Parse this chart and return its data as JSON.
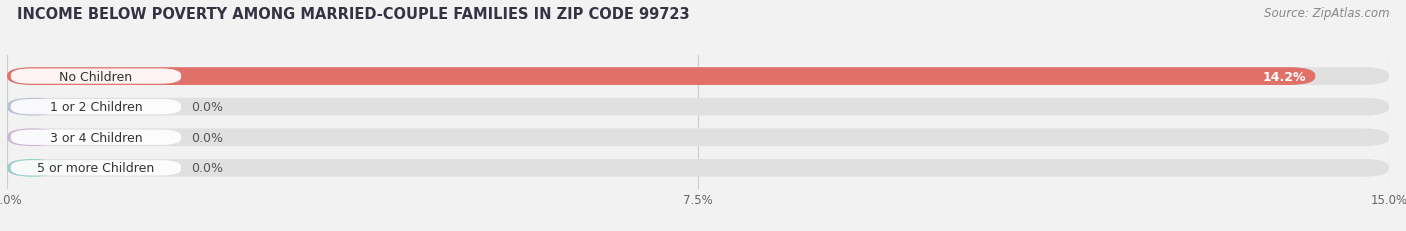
{
  "title": "INCOME BELOW POVERTY AMONG MARRIED-COUPLE FAMILIES IN ZIP CODE 99723",
  "source": "Source: ZipAtlas.com",
  "categories": [
    "No Children",
    "1 or 2 Children",
    "3 or 4 Children",
    "5 or more Children"
  ],
  "values": [
    14.2,
    0.0,
    0.0,
    0.0
  ],
  "bar_colors": [
    "#E07068",
    "#A8B4D8",
    "#C4A8CC",
    "#7EC8C4"
  ],
  "xlim": [
    0,
    15.0
  ],
  "xticks": [
    0.0,
    7.5,
    15.0
  ],
  "xticklabels": [
    "0.0%",
    "7.5%",
    "15.0%"
  ],
  "background_color": "#F2F2F2",
  "bar_background_color": "#E0E0E0",
  "title_fontsize": 10.5,
  "source_fontsize": 8.5,
  "bar_height": 0.58,
  "bar_label_fontsize": 9,
  "value_label_fontsize": 9
}
